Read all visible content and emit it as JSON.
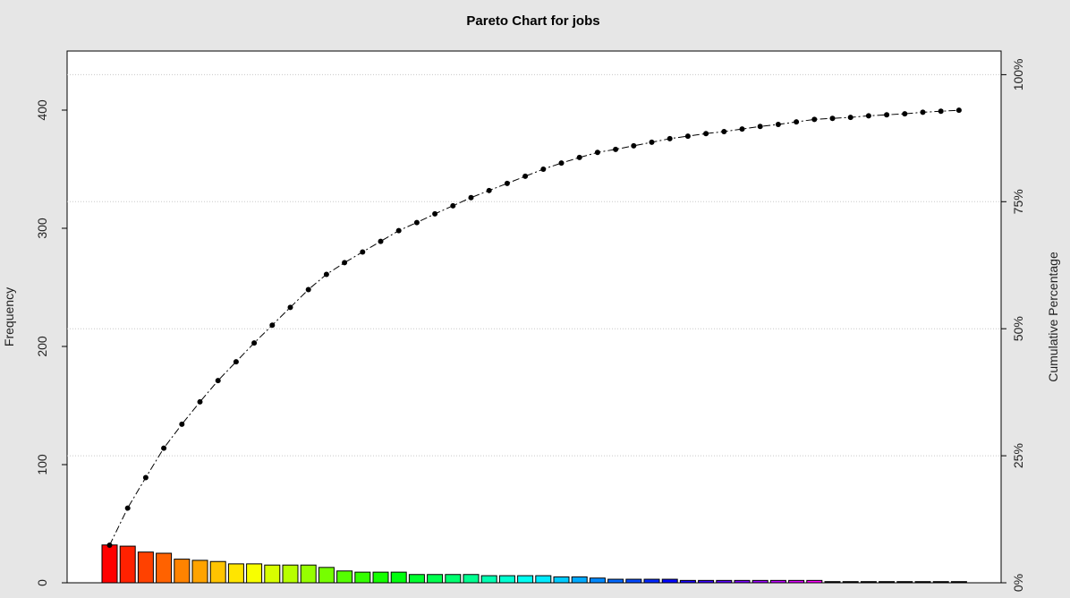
{
  "chart_data": {
    "type": "bar",
    "title": "Pareto Chart for jobs",
    "ylabel": "Frequency",
    "ylabel_right": "Cumulative Percentage",
    "ylim": [
      0,
      450
    ],
    "yticks": [
      0,
      100,
      200,
      300,
      400
    ],
    "right_ticks": [
      "0%",
      "25%",
      "50%",
      "75%",
      "100%"
    ],
    "grid": "horizontal dotted at cumulative percentage ticks",
    "total": 430,
    "values": [
      32,
      31,
      26,
      25,
      20,
      19,
      18,
      16,
      16,
      15,
      15,
      15,
      13,
      10,
      9,
      9,
      9,
      7,
      7,
      7,
      7,
      6,
      6,
      6,
      6,
      5,
      5,
      4,
      3,
      3,
      3,
      3,
      2,
      2,
      2,
      2,
      2,
      2,
      2,
      2,
      1,
      1,
      1,
      1,
      1,
      1,
      1,
      1
    ],
    "cumulative_percent": [
      7.4,
      14.7,
      20.7,
      26.5,
      31.2,
      35.6,
      39.8,
      43.5,
      47.2,
      50.7,
      54.2,
      57.7,
      60.7,
      63.0,
      65.1,
      67.2,
      69.3,
      70.9,
      72.6,
      74.2,
      75.8,
      77.2,
      78.6,
      80.0,
      81.4,
      82.6,
      83.7,
      84.7,
      85.3,
      86.0,
      86.7,
      87.4,
      87.9,
      88.4,
      88.8,
      89.3,
      89.8,
      90.2,
      90.7,
      91.2,
      91.4,
      91.6,
      91.9,
      92.1,
      92.3,
      92.6,
      92.8,
      93.0
    ]
  }
}
